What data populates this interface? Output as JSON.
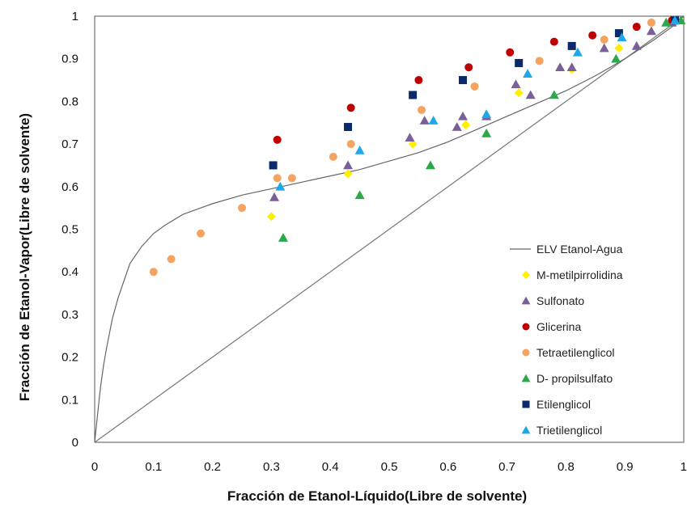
{
  "chart_data": {
    "type": "scatter",
    "xlabel": "Fracción de Etanol-Líquido(Libre de solvente)",
    "ylabel": "Fracción de Etanol-Vapor(Libre de solvente)",
    "xlim": [
      0,
      1
    ],
    "ylim": [
      0,
      1
    ],
    "x_ticks": [
      "0",
      "0.1",
      "0.2",
      "0.3",
      "0.4",
      "0.5",
      "0.6",
      "0.7",
      "0.8",
      "0.9",
      "1"
    ],
    "y_ticks": [
      "0",
      "0.1",
      "0.2",
      "0.3",
      "0.4",
      "0.5",
      "0.6",
      "0.7",
      "0.8",
      "0.9",
      "1"
    ],
    "grid": false,
    "legend_position": "right",
    "diagonal_line": [
      [
        0,
        0
      ],
      [
        1,
        1
      ]
    ],
    "series": [
      {
        "name": "ELV Etanol-Agua",
        "marker": "line",
        "color": "#666666",
        "x": [
          0,
          0.003,
          0.006,
          0.01,
          0.015,
          0.02,
          0.03,
          0.04,
          0.05,
          0.06,
          0.08,
          0.1,
          0.12,
          0.15,
          0.2,
          0.25,
          0.3,
          0.35,
          0.4,
          0.45,
          0.5,
          0.55,
          0.6,
          0.65,
          0.7,
          0.75,
          0.8,
          0.85,
          0.9,
          0.95,
          0.98,
          1.0
        ],
        "y": [
          0,
          0.04,
          0.08,
          0.13,
          0.18,
          0.22,
          0.29,
          0.34,
          0.38,
          0.42,
          0.46,
          0.49,
          0.51,
          0.535,
          0.56,
          0.58,
          0.595,
          0.61,
          0.625,
          0.64,
          0.66,
          0.68,
          0.705,
          0.735,
          0.765,
          0.795,
          0.825,
          0.86,
          0.9,
          0.945,
          0.975,
          1.0
        ]
      },
      {
        "name": "M-metilpirrolidina",
        "marker": "diamond",
        "color": "#ffee00",
        "x": [
          0.3,
          0.43,
          0.54,
          0.63,
          0.72,
          0.81,
          0.89
        ],
        "y": [
          0.53,
          0.63,
          0.7,
          0.745,
          0.82,
          0.875,
          0.925
        ]
      },
      {
        "name": "Sulfonato",
        "marker": "triangle",
        "color": "#7a6098",
        "x": [
          0.305,
          0.43,
          0.535,
          0.56,
          0.615,
          0.625,
          0.665,
          0.715,
          0.74,
          0.79,
          0.81,
          0.865,
          0.92,
          0.945,
          0.98
        ],
        "y": [
          0.575,
          0.65,
          0.715,
          0.755,
          0.74,
          0.765,
          0.765,
          0.84,
          0.815,
          0.88,
          0.88,
          0.925,
          0.93,
          0.965,
          0.985
        ]
      },
      {
        "name": "Glicerina",
        "marker": "circle",
        "color": "#c00000",
        "x": [
          0.31,
          0.435,
          0.55,
          0.635,
          0.705,
          0.78,
          0.845,
          0.92,
          0.98
        ],
        "y": [
          0.71,
          0.785,
          0.85,
          0.88,
          0.915,
          0.94,
          0.955,
          0.975,
          0.99
        ]
      },
      {
        "name": "Tetraetilenglicol",
        "marker": "circle",
        "color": "#f4a460",
        "x": [
          0.1,
          0.13,
          0.18,
          0.25,
          0.31,
          0.335,
          0.405,
          0.435,
          0.555,
          0.645,
          0.755,
          0.865,
          0.945
        ],
        "y": [
          0.4,
          0.43,
          0.49,
          0.55,
          0.62,
          0.62,
          0.67,
          0.7,
          0.78,
          0.835,
          0.895,
          0.945,
          0.985
        ]
      },
      {
        "name": "D- propilsulfato",
        "marker": "triangle",
        "color": "#2aa84a",
        "x": [
          0.32,
          0.45,
          0.57,
          0.665,
          0.78,
          0.885,
          0.97,
          0.995
        ],
        "y": [
          0.48,
          0.58,
          0.65,
          0.725,
          0.815,
          0.9,
          0.985,
          0.99
        ]
      },
      {
        "name": "Etilenglicol",
        "marker": "square",
        "color": "#0b2a6b",
        "x": [
          0.303,
          0.43,
          0.54,
          0.625,
          0.72,
          0.81,
          0.89,
          0.985
        ],
        "y": [
          0.65,
          0.74,
          0.815,
          0.85,
          0.89,
          0.93,
          0.96,
          0.99
        ]
      },
      {
        "name": "Trietilenglicol",
        "marker": "triangle",
        "color": "#1ea8e8",
        "x": [
          0.315,
          0.45,
          0.575,
          0.665,
          0.735,
          0.82,
          0.895,
          0.985
        ],
        "y": [
          0.6,
          0.685,
          0.755,
          0.77,
          0.865,
          0.915,
          0.95,
          0.99
        ]
      }
    ]
  }
}
